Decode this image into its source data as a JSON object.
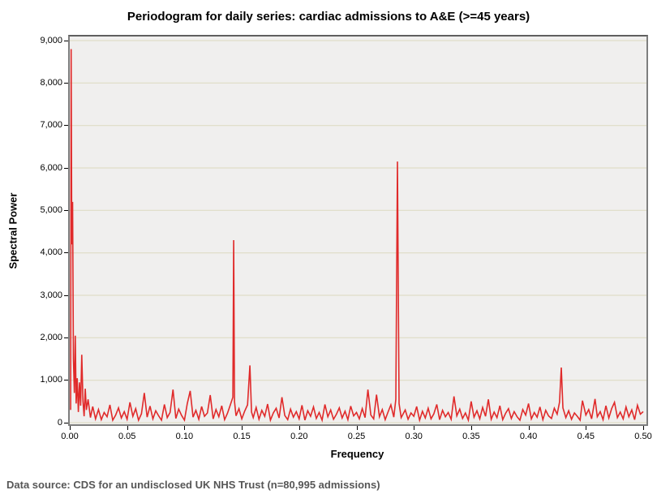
{
  "title": "Periodogram for daily series: cardiac admissions to A&E (>=45 years)",
  "footer": "Data source: CDS for an undisclosed UK NHS Trust (n=80,995 admissions)",
  "chart_data": {
    "type": "line",
    "title": "Periodogram for daily series: cardiac admissions to A&E (>=45 years)",
    "xlabel": "Frequency",
    "ylabel": "Spectral Power",
    "xlim": [
      0,
      0.5
    ],
    "ylim": [
      0,
      9000
    ],
    "grid": "horizontal",
    "legend": "none",
    "line_color": "#e02a2a",
    "plot_bg": "#f0efee",
    "grid_color": "#dcdabf",
    "frame_color": "#7e7e7e",
    "footer_color": "#565656",
    "yticks": [
      {
        "v": 0,
        "label": "0"
      },
      {
        "v": 1000,
        "label": "1,000"
      },
      {
        "v": 2000,
        "label": "2,000"
      },
      {
        "v": 3000,
        "label": "3,000"
      },
      {
        "v": 4000,
        "label": "4,000"
      },
      {
        "v": 5000,
        "label": "5,000"
      },
      {
        "v": 6000,
        "label": "6,000"
      },
      {
        "v": 7000,
        "label": "7,000"
      },
      {
        "v": 8000,
        "label": "8,000"
      },
      {
        "v": 9000,
        "label": "9,000"
      }
    ],
    "xticks": [
      {
        "v": 0.0,
        "label": "0.00"
      },
      {
        "v": 0.05,
        "label": "0.05"
      },
      {
        "v": 0.1,
        "label": "0.10"
      },
      {
        "v": 0.15,
        "label": "0.15"
      },
      {
        "v": 0.2,
        "label": "0.20"
      },
      {
        "v": 0.25,
        "label": "0.25"
      },
      {
        "v": 0.3,
        "label": "0.30"
      },
      {
        "v": 0.35,
        "label": "0.35"
      },
      {
        "v": 0.4,
        "label": "0.40"
      },
      {
        "v": 0.45,
        "label": "0.45"
      },
      {
        "v": 0.5,
        "label": "0.50"
      }
    ],
    "main_peaks": [
      {
        "frequency": 0.001,
        "power": 8800
      },
      {
        "frequency": 0.003,
        "power": 5200
      },
      {
        "frequency": 0.143,
        "power": 4300
      },
      {
        "frequency": 0.157,
        "power": 1350
      },
      {
        "frequency": 0.286,
        "power": 6150
      },
      {
        "frequency": 0.429,
        "power": 1300
      }
    ],
    "points": [
      [
        0.0008,
        300
      ],
      [
        0.0012,
        8800
      ],
      [
        0.0018,
        4200
      ],
      [
        0.0025,
        5200
      ],
      [
        0.0032,
        1500
      ],
      [
        0.004,
        700
      ],
      [
        0.0048,
        2050
      ],
      [
        0.0056,
        450
      ],
      [
        0.0065,
        1050
      ],
      [
        0.0075,
        250
      ],
      [
        0.0085,
        950
      ],
      [
        0.0095,
        400
      ],
      [
        0.0105,
        1600
      ],
      [
        0.0115,
        500
      ],
      [
        0.0125,
        150
      ],
      [
        0.0135,
        800
      ],
      [
        0.0145,
        300
      ],
      [
        0.016,
        550
      ],
      [
        0.018,
        120
      ],
      [
        0.02,
        380
      ],
      [
        0.0225,
        90
      ],
      [
        0.025,
        310
      ],
      [
        0.0275,
        70
      ],
      [
        0.03,
        240
      ],
      [
        0.0325,
        140
      ],
      [
        0.035,
        420
      ],
      [
        0.0375,
        60
      ],
      [
        0.04,
        180
      ],
      [
        0.0425,
        350
      ],
      [
        0.045,
        110
      ],
      [
        0.0475,
        260
      ],
      [
        0.05,
        80
      ],
      [
        0.0525,
        480
      ],
      [
        0.055,
        150
      ],
      [
        0.0575,
        330
      ],
      [
        0.06,
        60
      ],
      [
        0.0625,
        210
      ],
      [
        0.065,
        700
      ],
      [
        0.0675,
        130
      ],
      [
        0.07,
        390
      ],
      [
        0.0725,
        90
      ],
      [
        0.075,
        280
      ],
      [
        0.0775,
        160
      ],
      [
        0.08,
        60
      ],
      [
        0.0825,
        430
      ],
      [
        0.085,
        120
      ],
      [
        0.0875,
        240
      ],
      [
        0.09,
        780
      ],
      [
        0.0925,
        100
      ],
      [
        0.095,
        320
      ],
      [
        0.0975,
        170
      ],
      [
        0.1,
        60
      ],
      [
        0.1025,
        450
      ],
      [
        0.105,
        750
      ],
      [
        0.1075,
        130
      ],
      [
        0.11,
        290
      ],
      [
        0.1125,
        80
      ],
      [
        0.115,
        380
      ],
      [
        0.1175,
        150
      ],
      [
        0.12,
        230
      ],
      [
        0.1225,
        650
      ],
      [
        0.125,
        90
      ],
      [
        0.1275,
        310
      ],
      [
        0.13,
        140
      ],
      [
        0.1325,
        400
      ],
      [
        0.135,
        70
      ],
      [
        0.1375,
        220
      ],
      [
        0.14,
        420
      ],
      [
        0.1422,
        600
      ],
      [
        0.1429,
        4300
      ],
      [
        0.1436,
        500
      ],
      [
        0.145,
        160
      ],
      [
        0.1475,
        330
      ],
      [
        0.15,
        90
      ],
      [
        0.1525,
        270
      ],
      [
        0.155,
        420
      ],
      [
        0.1571,
        1350
      ],
      [
        0.1585,
        250
      ],
      [
        0.16,
        120
      ],
      [
        0.1625,
        360
      ],
      [
        0.165,
        80
      ],
      [
        0.1675,
        290
      ],
      [
        0.17,
        150
      ],
      [
        0.1725,
        440
      ],
      [
        0.175,
        60
      ],
      [
        0.1775,
        230
      ],
      [
        0.18,
        340
      ],
      [
        0.1825,
        110
      ],
      [
        0.185,
        600
      ],
      [
        0.1875,
        170
      ],
      [
        0.19,
        70
      ],
      [
        0.1925,
        320
      ],
      [
        0.195,
        130
      ],
      [
        0.1975,
        260
      ],
      [
        0.2,
        90
      ],
      [
        0.2025,
        410
      ],
      [
        0.205,
        60
      ],
      [
        0.2075,
        280
      ],
      [
        0.21,
        150
      ],
      [
        0.2125,
        370
      ],
      [
        0.215,
        100
      ],
      [
        0.2175,
        240
      ],
      [
        0.22,
        60
      ],
      [
        0.2225,
        430
      ],
      [
        0.225,
        140
      ],
      [
        0.2275,
        300
      ],
      [
        0.23,
        80
      ],
      [
        0.2325,
        200
      ],
      [
        0.235,
        350
      ],
      [
        0.2375,
        110
      ],
      [
        0.24,
        270
      ],
      [
        0.2425,
        70
      ],
      [
        0.245,
        390
      ],
      [
        0.2475,
        160
      ],
      [
        0.25,
        240
      ],
      [
        0.2525,
        90
      ],
      [
        0.255,
        330
      ],
      [
        0.2575,
        120
      ],
      [
        0.26,
        780
      ],
      [
        0.2625,
        180
      ],
      [
        0.265,
        90
      ],
      [
        0.2675,
        660
      ],
      [
        0.27,
        140
      ],
      [
        0.2725,
        310
      ],
      [
        0.275,
        70
      ],
      [
        0.2775,
        250
      ],
      [
        0.28,
        420
      ],
      [
        0.2825,
        130
      ],
      [
        0.2843,
        550
      ],
      [
        0.2857,
        6150
      ],
      [
        0.2871,
        450
      ],
      [
        0.289,
        120
      ],
      [
        0.2925,
        300
      ],
      [
        0.295,
        80
      ],
      [
        0.2975,
        230
      ],
      [
        0.3,
        150
      ],
      [
        0.3025,
        380
      ],
      [
        0.305,
        60
      ],
      [
        0.3075,
        270
      ],
      [
        0.31,
        110
      ],
      [
        0.3125,
        340
      ],
      [
        0.315,
        90
      ],
      [
        0.3175,
        210
      ],
      [
        0.32,
        430
      ],
      [
        0.3225,
        70
      ],
      [
        0.325,
        290
      ],
      [
        0.3275,
        140
      ],
      [
        0.33,
        240
      ],
      [
        0.3325,
        80
      ],
      [
        0.335,
        620
      ],
      [
        0.3375,
        160
      ],
      [
        0.34,
        320
      ],
      [
        0.3425,
        100
      ],
      [
        0.345,
        230
      ],
      [
        0.3475,
        60
      ],
      [
        0.35,
        500
      ],
      [
        0.3525,
        130
      ],
      [
        0.355,
        280
      ],
      [
        0.3575,
        90
      ],
      [
        0.36,
        360
      ],
      [
        0.3625,
        150
      ],
      [
        0.365,
        550
      ],
      [
        0.3675,
        80
      ],
      [
        0.37,
        250
      ],
      [
        0.3725,
        120
      ],
      [
        0.375,
        400
      ],
      [
        0.3775,
        70
      ],
      [
        0.38,
        220
      ],
      [
        0.3825,
        330
      ],
      [
        0.385,
        100
      ],
      [
        0.3875,
        260
      ],
      [
        0.39,
        140
      ],
      [
        0.3925,
        60
      ],
      [
        0.395,
        310
      ],
      [
        0.3975,
        180
      ],
      [
        0.4,
        450
      ],
      [
        0.4025,
        90
      ],
      [
        0.405,
        240
      ],
      [
        0.4075,
        130
      ],
      [
        0.41,
        370
      ],
      [
        0.4125,
        70
      ],
      [
        0.415,
        290
      ],
      [
        0.4175,
        160
      ],
      [
        0.42,
        100
      ],
      [
        0.4225,
        340
      ],
      [
        0.425,
        200
      ],
      [
        0.427,
        480
      ],
      [
        0.4286,
        1300
      ],
      [
        0.43,
        350
      ],
      [
        0.4325,
        120
      ],
      [
        0.435,
        280
      ],
      [
        0.4375,
        80
      ],
      [
        0.44,
        230
      ],
      [
        0.4425,
        150
      ],
      [
        0.445,
        60
      ],
      [
        0.447,
        520
      ],
      [
        0.45,
        180
      ],
      [
        0.4525,
        310
      ],
      [
        0.455,
        90
      ],
      [
        0.458,
        560
      ],
      [
        0.46,
        140
      ],
      [
        0.4625,
        260
      ],
      [
        0.465,
        70
      ],
      [
        0.4675,
        400
      ],
      [
        0.47,
        110
      ],
      [
        0.4725,
        330
      ],
      [
        0.475,
        480
      ],
      [
        0.4775,
        120
      ],
      [
        0.48,
        250
      ],
      [
        0.4825,
        90
      ],
      [
        0.485,
        370
      ],
      [
        0.4875,
        140
      ],
      [
        0.49,
        300
      ],
      [
        0.4925,
        70
      ],
      [
        0.495,
        410
      ],
      [
        0.4975,
        200
      ],
      [
        0.5,
        260
      ]
    ]
  }
}
